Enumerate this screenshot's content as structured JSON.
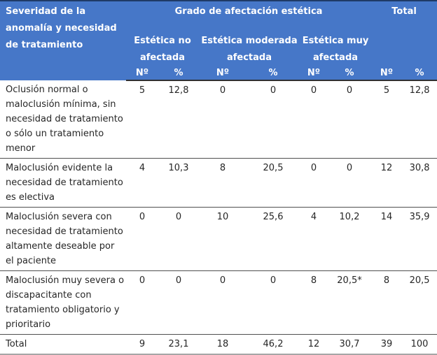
{
  "table": {
    "title_cell": "Severidad de la anomalía y necesidad de tratamiento",
    "group_title": "Grado de afectación estética",
    "total_title": "Total",
    "subgroups": [
      "Estética no afectada",
      "Estética moderada afectada",
      "Estética muy afectada"
    ],
    "count_label": "Nº",
    "pct_label": "%",
    "rows": [
      {
        "label": "Oclusión normal o maloclusión mínima, sin necesidad de tratamiento o sólo un tratamiento menor",
        "values": [
          "5",
          "12,8",
          "0",
          "0",
          "0",
          "0",
          "5",
          "12,8"
        ],
        "is_total": false
      },
      {
        "label": "Maloclusión evidente la necesidad de tratamiento es electiva",
        "values": [
          "4",
          "10,3",
          "8",
          "20,5",
          "0",
          "0",
          "12",
          "30,8"
        ],
        "is_total": false
      },
      {
        "label": "Maloclusión severa con necesidad de tratamiento altamente deseable por el paciente",
        "values": [
          "0",
          "0",
          "10",
          "25,6",
          "4",
          "10,2",
          "14",
          "35,9"
        ],
        "is_total": false
      },
      {
        "label": "Maloclusión muy severa o discapacitante con tratamiento obligatorio y prioritario",
        "values": [
          "0",
          "0",
          "0",
          "0",
          "8",
          "20,5*",
          "8",
          "20,5"
        ],
        "is_total": false
      },
      {
        "label": "Total",
        "values": [
          "9",
          "23,1",
          "18",
          "46,2",
          "12",
          "30,7",
          "39",
          "100"
        ],
        "is_total": true
      }
    ],
    "colors": {
      "header_bg": "#4677C8",
      "header_text": "#FFFFFF",
      "top_border": "#1F3A66",
      "header_bottom_border": "#303030",
      "row_border": "#4F4F4F",
      "bottom_border": "#A6A6A6",
      "body_text": "#262626"
    }
  }
}
